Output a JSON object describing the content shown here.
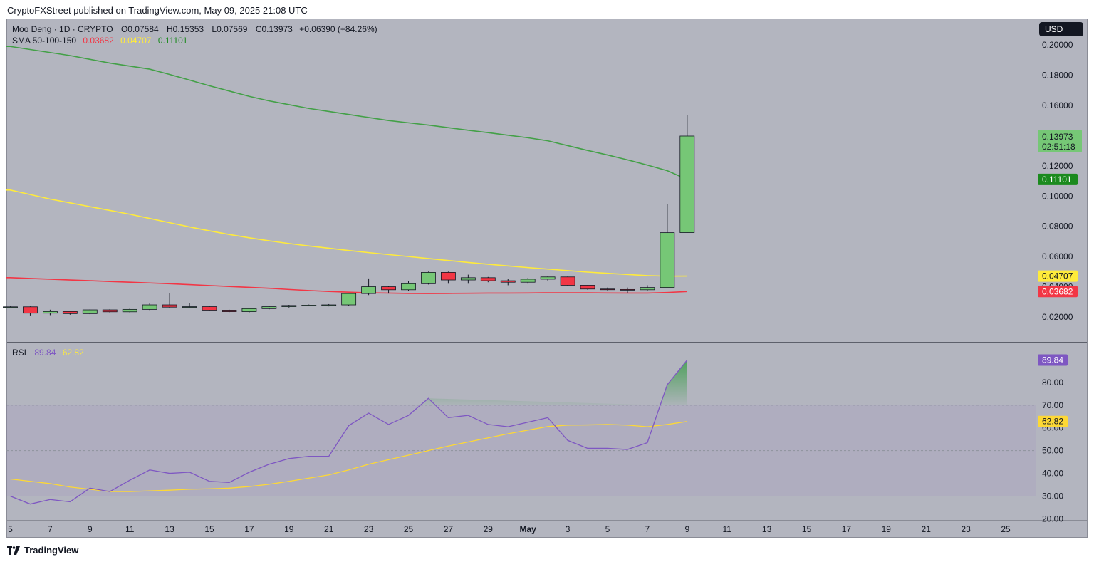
{
  "byline": "CryptoFXStreet published on TradingView.com, May 09, 2025 21:08 UTC",
  "footer": {
    "brand": "TradingView"
  },
  "currency_button": "USD",
  "chart_data": {
    "type": "candlestick",
    "legend": {
      "symbol": "Moo Deng · 1D · CRYPTO",
      "open": "O0.07584",
      "high": "H0.15353",
      "low": "L0.07569",
      "close": "C0.13973",
      "change": "+0.06390 (+84.26%)",
      "sma_label": "SMA 50-100-150",
      "sma50": "0.03682",
      "sma100": "0.04707",
      "sma150": "0.11101"
    },
    "price_axis": {
      "ylim": [
        0.0035,
        0.2175
      ],
      "ticks": [
        {
          "v": 0.2,
          "label": "0.20000"
        },
        {
          "v": 0.18,
          "label": "0.18000"
        },
        {
          "v": 0.16,
          "label": "0.16000"
        },
        {
          "v": 0.12,
          "label": "0.12000"
        },
        {
          "v": 0.1,
          "label": "0.10000"
        },
        {
          "v": 0.08,
          "label": "0.08000"
        },
        {
          "v": 0.06,
          "label": "0.06000"
        },
        {
          "v": 0.04,
          "label": "0.04000"
        },
        {
          "v": 0.02,
          "label": "0.02000"
        }
      ],
      "last_price": {
        "value": 0.13973,
        "label": "0.13973",
        "countdown": "02:51:18"
      },
      "sma_labels": [
        {
          "value": 0.11101,
          "label": "0.11101"
        },
        {
          "value": 0.04707,
          "label": "0.04707"
        },
        {
          "value": 0.03682,
          "label": "0.03682"
        }
      ]
    },
    "x_axis": {
      "start_day": "2025-04-05",
      "labels": [
        "5",
        "7",
        "9",
        "11",
        "13",
        "15",
        "17",
        "19",
        "21",
        "23",
        "25",
        "27",
        "29",
        "May",
        "3",
        "5",
        "7",
        "9",
        "11",
        "13",
        "15",
        "17",
        "19",
        "21",
        "23",
        "25"
      ]
    },
    "candles": [
      {
        "date": "2025-04-05",
        "o": 0.0265,
        "h": 0.027,
        "l": 0.0262,
        "c": 0.0267
      },
      {
        "date": "2025-04-06",
        "o": 0.0267,
        "h": 0.027,
        "l": 0.021,
        "c": 0.0225
      },
      {
        "date": "2025-04-07",
        "o": 0.0225,
        "h": 0.0248,
        "l": 0.0212,
        "c": 0.0236
      },
      {
        "date": "2025-04-08",
        "o": 0.0236,
        "h": 0.0242,
        "l": 0.0215,
        "c": 0.0222
      },
      {
        "date": "2025-04-09",
        "o": 0.0222,
        "h": 0.025,
        "l": 0.0218,
        "c": 0.0247
      },
      {
        "date": "2025-04-10",
        "o": 0.0247,
        "h": 0.0252,
        "l": 0.0228,
        "c": 0.0234
      },
      {
        "date": "2025-04-11",
        "o": 0.0234,
        "h": 0.0255,
        "l": 0.023,
        "c": 0.025
      },
      {
        "date": "2025-04-12",
        "o": 0.025,
        "h": 0.029,
        "l": 0.0245,
        "c": 0.028
      },
      {
        "date": "2025-04-13",
        "o": 0.028,
        "h": 0.036,
        "l": 0.026,
        "c": 0.0265
      },
      {
        "date": "2025-04-14",
        "o": 0.0265,
        "h": 0.029,
        "l": 0.0258,
        "c": 0.0268
      },
      {
        "date": "2025-04-15",
        "o": 0.0268,
        "h": 0.0275,
        "l": 0.024,
        "c": 0.0245
      },
      {
        "date": "2025-04-16",
        "o": 0.0245,
        "h": 0.0248,
        "l": 0.0232,
        "c": 0.0235
      },
      {
        "date": "2025-04-17",
        "o": 0.0235,
        "h": 0.026,
        "l": 0.023,
        "c": 0.0255
      },
      {
        "date": "2025-04-18",
        "o": 0.0255,
        "h": 0.0272,
        "l": 0.025,
        "c": 0.0268
      },
      {
        "date": "2025-04-19",
        "o": 0.0268,
        "h": 0.028,
        "l": 0.0262,
        "c": 0.0276
      },
      {
        "date": "2025-04-20",
        "o": 0.0276,
        "h": 0.0282,
        "l": 0.0272,
        "c": 0.0278
      },
      {
        "date": "2025-04-21",
        "o": 0.0278,
        "h": 0.0285,
        "l": 0.027,
        "c": 0.028
      },
      {
        "date": "2025-04-22",
        "o": 0.028,
        "h": 0.036,
        "l": 0.0275,
        "c": 0.0355
      },
      {
        "date": "2025-04-23",
        "o": 0.0355,
        "h": 0.0455,
        "l": 0.0345,
        "c": 0.04
      },
      {
        "date": "2025-04-24",
        "o": 0.04,
        "h": 0.0405,
        "l": 0.0355,
        "c": 0.038
      },
      {
        "date": "2025-04-25",
        "o": 0.038,
        "h": 0.044,
        "l": 0.037,
        "c": 0.042
      },
      {
        "date": "2025-04-26",
        "o": 0.042,
        "h": 0.05,
        "l": 0.0415,
        "c": 0.0495
      },
      {
        "date": "2025-04-27",
        "o": 0.0495,
        "h": 0.05,
        "l": 0.042,
        "c": 0.0445
      },
      {
        "date": "2025-04-28",
        "o": 0.0445,
        "h": 0.048,
        "l": 0.042,
        "c": 0.046
      },
      {
        "date": "2025-04-29",
        "o": 0.046,
        "h": 0.0465,
        "l": 0.043,
        "c": 0.044
      },
      {
        "date": "2025-04-30",
        "o": 0.044,
        "h": 0.045,
        "l": 0.041,
        "c": 0.043
      },
      {
        "date": "2025-05-01",
        "o": 0.043,
        "h": 0.0458,
        "l": 0.042,
        "c": 0.045
      },
      {
        "date": "2025-05-02",
        "o": 0.045,
        "h": 0.047,
        "l": 0.044,
        "c": 0.0465
      },
      {
        "date": "2025-05-03",
        "o": 0.0465,
        "h": 0.0468,
        "l": 0.0405,
        "c": 0.041
      },
      {
        "date": "2025-05-04",
        "o": 0.041,
        "h": 0.0412,
        "l": 0.038,
        "c": 0.0385
      },
      {
        "date": "2025-05-05",
        "o": 0.0385,
        "h": 0.0395,
        "l": 0.0375,
        "c": 0.0382
      },
      {
        "date": "2025-05-06",
        "o": 0.0382,
        "h": 0.0395,
        "l": 0.036,
        "c": 0.038
      },
      {
        "date": "2025-05-07",
        "o": 0.038,
        "h": 0.041,
        "l": 0.0372,
        "c": 0.0395
      },
      {
        "date": "2025-05-08",
        "o": 0.0395,
        "h": 0.0945,
        "l": 0.039,
        "c": 0.0758
      },
      {
        "date": "2025-05-09",
        "o": 0.07584,
        "h": 0.15353,
        "l": 0.07569,
        "c": 0.13973
      }
    ],
    "series": [
      {
        "name": "SMA 50",
        "color": "#f23645",
        "values": [
          0.046,
          0.0455,
          0.045,
          0.0445,
          0.044,
          0.0435,
          0.043,
          0.0425,
          0.042,
          0.0414,
          0.0408,
          0.0402,
          0.0396,
          0.039,
          0.0382,
          0.0375,
          0.0369,
          0.0364,
          0.036,
          0.0358,
          0.0356,
          0.0355,
          0.0356,
          0.0357,
          0.0358,
          0.0358,
          0.0359,
          0.036,
          0.036,
          0.036,
          0.0359,
          0.0358,
          0.0358,
          0.0362,
          0.03682
        ]
      },
      {
        "name": "SMA 100",
        "color": "#ffeb3b",
        "values": [
          0.104,
          0.101,
          0.098,
          0.0955,
          0.093,
          0.0905,
          0.088,
          0.0852,
          0.0824,
          0.0796,
          0.077,
          0.0746,
          0.0724,
          0.0704,
          0.0686,
          0.067,
          0.0655,
          0.064,
          0.0626,
          0.0613,
          0.06,
          0.0587,
          0.0574,
          0.0561,
          0.0549,
          0.0538,
          0.0527,
          0.0517,
          0.0507,
          0.0497,
          0.0489,
          0.0481,
          0.0474,
          0.047,
          0.04707
        ]
      },
      {
        "name": "SMA 150",
        "color": "#43a047",
        "values": [
          0.199,
          0.197,
          0.195,
          0.193,
          0.1905,
          0.188,
          0.186,
          0.184,
          0.1805,
          0.1768,
          0.173,
          0.1695,
          0.166,
          0.163,
          0.1605,
          0.158,
          0.156,
          0.154,
          0.152,
          0.15,
          0.1485,
          0.147,
          0.1453,
          0.1436,
          0.142,
          0.1403,
          0.1386,
          0.1366,
          0.1334,
          0.1302,
          0.1272,
          0.124,
          0.1205,
          0.1168,
          0.11101
        ]
      }
    ],
    "rsi": {
      "label": "RSI",
      "value_label": "89.84",
      "ma_label": "62.82",
      "ylim": [
        19.5,
        97.5
      ],
      "upper_band": 70,
      "lower_band": 30,
      "ticks": [
        {
          "v": 80,
          "label": "80.00"
        },
        {
          "v": 70,
          "label": "70.00"
        },
        {
          "v": 60,
          "label": "60.00"
        },
        {
          "v": 50,
          "label": "50.00"
        },
        {
          "v": 40,
          "label": "40.00"
        },
        {
          "v": 30,
          "label": "30.00"
        },
        {
          "v": 20,
          "label": "20.00"
        }
      ],
      "values": [
        30.0,
        26.5,
        28.5,
        27.5,
        33.5,
        32.0,
        37.0,
        41.5,
        40.0,
        40.5,
        36.5,
        36.0,
        40.5,
        44.0,
        46.5,
        47.5,
        47.5,
        61.0,
        66.5,
        61.5,
        65.5,
        73.0,
        64.5,
        65.5,
        61.5,
        60.5,
        62.5,
        64.5,
        54.5,
        51.0,
        51.0,
        50.5,
        53.5,
        79.0,
        89.84
      ],
      "ma_values": [
        37.5,
        36.5,
        35.5,
        34.0,
        33.0,
        32.0,
        32.0,
        32.3,
        32.6,
        33.0,
        33.2,
        33.5,
        34.2,
        35.2,
        36.5,
        37.9,
        39.3,
        41.5,
        44.0,
        46.0,
        48.0,
        50.0,
        52.0,
        53.8,
        55.6,
        57.4,
        59.0,
        60.6,
        61.2,
        61.3,
        61.5,
        61.2,
        60.5,
        61.5,
        62.82
      ]
    }
  }
}
